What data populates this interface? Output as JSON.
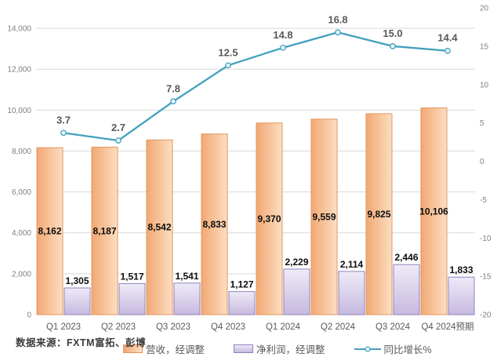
{
  "source_note": "数据来源：FXTM富拓、彭博",
  "colors": {
    "revenue_bar_from": "#F2A873",
    "revenue_bar_to": "#FCDEC2",
    "revenue_bar_border": "#E2955C",
    "profit_bar_from": "#EFEBF8",
    "profit_bar_to": "#C6B9DF",
    "profit_bar_border": "#9082BB",
    "growth_line": "#42A0BE",
    "marker_fill": "#EAF5F9",
    "gridline": "#D9D9D9",
    "axis_line": "#BFBFBF",
    "axis_tick_text": "#7F7F7F",
    "category_text": "#595959",
    "bar_label_text": "#0D0D0D",
    "line_label_text": "#595959"
  },
  "chart_data": {
    "type": "combo-bar-line",
    "title": "",
    "grid": true,
    "legend_position": "bottom",
    "categories": [
      "Q1 2023",
      "Q2 2023",
      "Q3 2023",
      "Q4 2023",
      "Q1 2024",
      "Q2 2024",
      "Q3 2024",
      "Q4 2024预期"
    ],
    "series": [
      {
        "name": "营收，经调整",
        "type": "bar",
        "axis": "left",
        "values": [
          8162,
          8187,
          8542,
          8833,
          9370,
          9559,
          9825,
          10106
        ],
        "labels": [
          "8,162",
          "8,187",
          "8,542",
          "8,833",
          "9,370",
          "9,559",
          "9,825",
          "10,106"
        ],
        "label_position": "inside-center"
      },
      {
        "name": "净利润，经调整",
        "type": "bar",
        "axis": "left",
        "values": [
          1305,
          1517,
          1541,
          1127,
          2229,
          2114,
          2446,
          1833
        ],
        "labels": [
          "1,305",
          "1,517",
          "1,541",
          "1,127",
          "2,229",
          "2,114",
          "2,446",
          "1,833"
        ],
        "label_position": "outside-top"
      },
      {
        "name": "同比增长%",
        "type": "line",
        "axis": "right",
        "values": [
          3.7,
          2.7,
          7.8,
          12.5,
          14.8,
          16.8,
          15.0,
          14.4
        ],
        "labels": [
          "3.7",
          "2.7",
          "7.8",
          "12.5",
          "14.8",
          "16.8",
          "15.0",
          "14.4"
        ],
        "label_position": "above-point"
      }
    ],
    "left_axis": {
      "min": 0,
      "max": 15000,
      "major_unit": 2000,
      "ticks": [
        14000,
        12000,
        10000,
        8000,
        6000,
        4000,
        2000,
        0
      ],
      "tick_labels": [
        "14,000",
        "12,000",
        "10,000",
        "8,000",
        "6,000",
        "4,000",
        "2,000",
        "0"
      ]
    },
    "right_axis": {
      "min": -20,
      "max": 20,
      "major_unit": 5,
      "ticks": [
        20,
        15,
        10,
        5,
        0,
        -5,
        -10,
        -15,
        -20
      ],
      "tick_labels": [
        "20",
        "15",
        "10",
        "5",
        "0",
        "-5",
        "-10",
        "-15",
        "-20"
      ]
    }
  }
}
